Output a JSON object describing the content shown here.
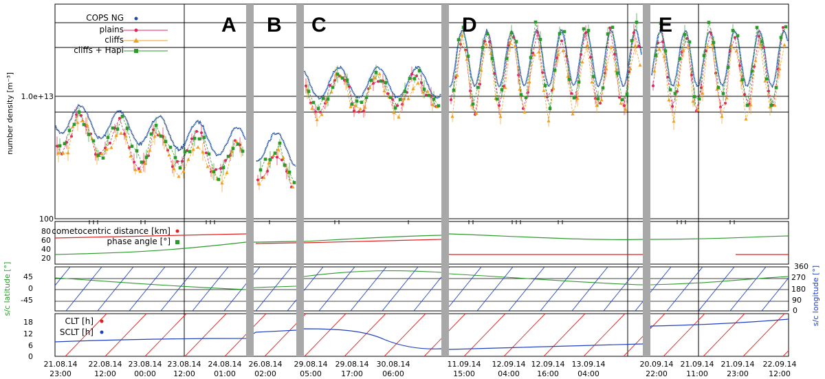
{
  "chart_data": {
    "type": "line",
    "panel_1": {
      "ylabel": "number density [m⁻³]",
      "y_ticks": [
        "1.0e+13",
        "100"
      ],
      "legend": [
        {
          "name": "COPS NG",
          "color": "#1f4e9c"
        },
        {
          "name": "plains",
          "color": "#e0245e"
        },
        {
          "name": "cliffs",
          "color": "#f0a020"
        },
        {
          "name": "cliffs + Hapi",
          "color": "#2a9a2a"
        }
      ],
      "segments": [
        "A",
        "B",
        "C",
        "D",
        "E"
      ]
    },
    "panel_2": {
      "y_ticks": [
        "100",
        "80",
        "60",
        "40",
        "20"
      ],
      "legend": [
        {
          "name": "cometocentric distance [km]",
          "color": "#e02020"
        },
        {
          "name": "phase angle [°]",
          "color": "#2a9a2a"
        }
      ]
    },
    "panel_3": {
      "ylabel_left": "s/c latitude [°]",
      "ylabel_right": "s/c longitude [°]",
      "y_ticks_left": [
        "45",
        "0",
        "-45"
      ],
      "y_ticks_right": [
        "360",
        "270",
        "180",
        "90",
        "0"
      ]
    },
    "panel_4": {
      "y_ticks": [
        "18",
        "12",
        "6",
        "0"
      ],
      "legend": [
        {
          "name": "CLT [h]",
          "color": "#e02020"
        },
        {
          "name": "SCLT [h]",
          "color": "#1f3fbf"
        }
      ]
    },
    "x_ticks": [
      {
        "date": "21.08.14",
        "time": "23:00"
      },
      {
        "date": "22.08.14",
        "time": "12:00"
      },
      {
        "date": "23.08.14",
        "time": "00:00"
      },
      {
        "date": "23.08.14",
        "time": "12:00"
      },
      {
        "date": "24.08.14",
        "time": "01:00"
      },
      {
        "date": "26.08.14",
        "time": "02:00"
      },
      {
        "date": "29.08.14",
        "time": "05:00"
      },
      {
        "date": "29.08.14",
        "time": "17:00"
      },
      {
        "date": "30.08.14",
        "time": "06:00"
      },
      {
        "date": "11.09.14",
        "time": "15:00"
      },
      {
        "date": "12.09.14",
        "time": "04:00"
      },
      {
        "date": "12.09.14",
        "time": "16:00"
      },
      {
        "date": "13.09.14",
        "time": "04:00"
      },
      {
        "date": "20.09.14",
        "time": "22:00"
      },
      {
        "date": "21.09.14",
        "time": "11:00"
      },
      {
        "date": "21.09.14",
        "time": "23:00"
      },
      {
        "date": "22.09.14",
        "time": "12:00"
      }
    ],
    "colors": {
      "cops": "#1f4e9c",
      "plains": "#e0245e",
      "cliffs": "#f0a020",
      "hapi": "#2a9a2a",
      "distance": "#e02020",
      "sclt": "#1f3fbf",
      "gap": "#a8a8a8"
    }
  }
}
